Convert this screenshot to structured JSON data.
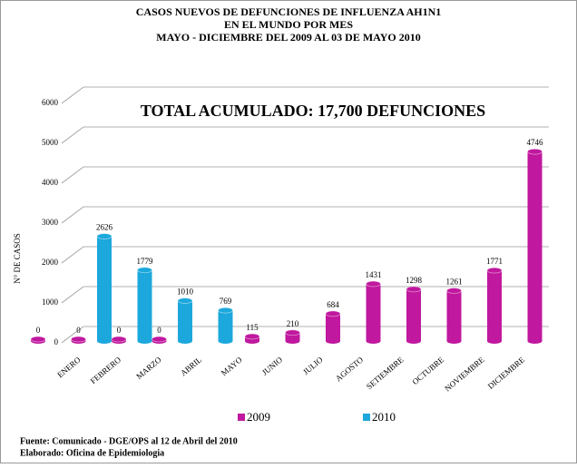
{
  "chart_data": {
    "type": "bar",
    "title": [
      "CASOS NUEVOS DE DEFUNCIONES DE INFLUENZA AH1N1",
      "EN EL MUNDO POR MES",
      "MAYO - DICIEMBRE DEL 2009 AL 03 DE MAYO 2010"
    ],
    "annotation": "TOTAL ACUMULADO: 17,700 DEFUNCIONES",
    "y_label": "N° DE CASOS",
    "categories": [
      "ENERO",
      "FEBRERO",
      "MARZO",
      "ABRIL",
      "MAYO",
      "JUNIO",
      "JULIO",
      "AGOSTO",
      "SETIEMBRE",
      "OCTUBRE",
      "NOVIEMBRE",
      "DICIEMBRE"
    ],
    "series": [
      {
        "name": "2009",
        "color": "#c0189e",
        "values": [
          0,
          0,
          0,
          0,
          115,
          210,
          684,
          1431,
          1298,
          1261,
          1771,
          4746
        ]
      },
      {
        "name": "2010",
        "color": "#1ca8dc",
        "values": [
          2626,
          1779,
          1010,
          769,
          null,
          null,
          null,
          null,
          null,
          null,
          null,
          null
        ]
      }
    ],
    "ylim": [
      0,
      6000
    ],
    "yticks": [
      0,
      1000,
      2000,
      3000,
      4000,
      5000,
      6000
    ],
    "grid": true,
    "footnotes": [
      "Fuente: Comunicado - DGE/OPS  al 12 de Abril del 2010",
      "Elaborado: Oficina de Epidemiologia"
    ]
  }
}
